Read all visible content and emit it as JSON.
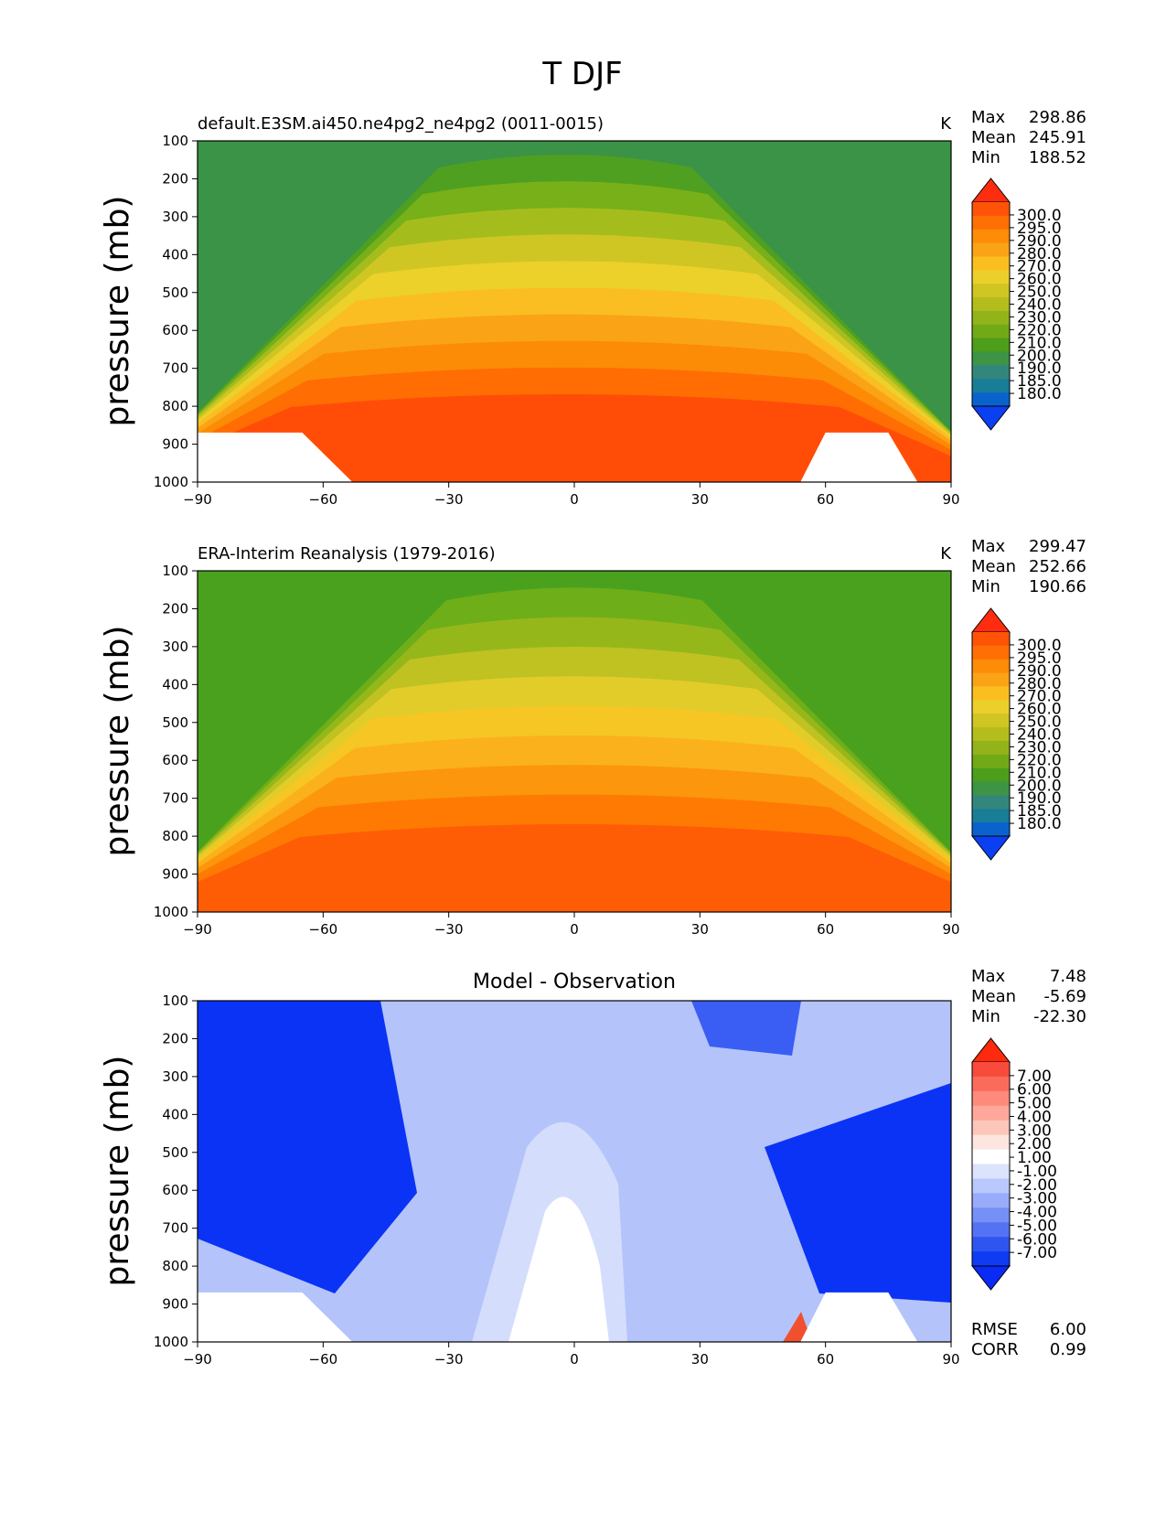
{
  "figure": {
    "title": "T DJF"
  },
  "chart_data": [
    {
      "type": "contour",
      "title": "default.E3SM.ai450.ne4pg2_ne4pg2 (0011-0015)",
      "units": "K",
      "ylabel": "pressure (mb)",
      "xlim": [
        -90,
        90
      ],
      "ylim": [
        1000,
        100
      ],
      "xticks": [
        "−90",
        "−60",
        "−30",
        "0",
        "30",
        "60",
        "90"
      ],
      "yticks": [
        "100",
        "200",
        "300",
        "400",
        "500",
        "600",
        "700",
        "800",
        "900",
        "1000"
      ],
      "stats": [
        {
          "label": "Max",
          "value": "298.86"
        },
        {
          "label": "Mean",
          "value": "245.91"
        },
        {
          "label": "Min",
          "value": "188.52"
        }
      ],
      "colorbar": {
        "levels": [
          "300.0",
          "295.0",
          "290.0",
          "280.0",
          "270.0",
          "260.0",
          "250.0",
          "240.0",
          "230.0",
          "220.0",
          "210.0",
          "200.0",
          "190.0",
          "185.0",
          "180.0"
        ],
        "colors": [
          "#ff2d0f",
          "#ff5408",
          "#ff6f05",
          "#fd8c07",
          "#fba317",
          "#fbbe21",
          "#ebcf2b",
          "#cfc523",
          "#b3be1d",
          "#92b41a",
          "#72a917",
          "#4c9e1b",
          "#3d9445",
          "#33867c",
          "#187d97",
          "#0a62cd",
          "#0b3ff2"
        ]
      },
      "contour_fill": [
        "#3a9346",
        "#4fa020",
        "#77b019",
        "#a5bd1c",
        "#cfc624",
        "#ecd12b",
        "#fbbe22",
        "#fba316",
        "#fc8b06",
        "#ff6d03",
        "#ff4d08"
      ],
      "grid": false
    },
    {
      "type": "contour",
      "title": "ERA-Interim Reanalysis (1979-2016)",
      "units": "K",
      "ylabel": "pressure (mb)",
      "xlim": [
        -90,
        90
      ],
      "ylim": [
        1000,
        100
      ],
      "xticks": [
        "−90",
        "−60",
        "−30",
        "0",
        "30",
        "60",
        "90"
      ],
      "yticks": [
        "100",
        "200",
        "300",
        "400",
        "500",
        "600",
        "700",
        "800",
        "900",
        "1000"
      ],
      "stats": [
        {
          "label": "Max",
          "value": "299.47"
        },
        {
          "label": "Mean",
          "value": "252.66"
        },
        {
          "label": "Min",
          "value": "190.66"
        }
      ],
      "colorbar": {
        "levels": [
          "300.0",
          "295.0",
          "290.0",
          "280.0",
          "270.0",
          "260.0",
          "250.0",
          "240.0",
          "230.0",
          "220.0",
          "210.0",
          "200.0",
          "190.0",
          "185.0",
          "180.0"
        ],
        "colors": [
          "#ff2d0f",
          "#ff5408",
          "#ff6f05",
          "#fd8c07",
          "#fba317",
          "#fbbe21",
          "#ebcf2b",
          "#cfc523",
          "#b3be1d",
          "#92b41a",
          "#72a917",
          "#4c9e1b",
          "#3d9445",
          "#33867c",
          "#187d97",
          "#0a62cd",
          "#0b3ff2"
        ]
      },
      "contour_fill": [
        "#4aa11e",
        "#6eae19",
        "#96b71a",
        "#bfc221",
        "#e2cc29",
        "#f6c624",
        "#fbb11c",
        "#fc960c",
        "#ff7a03",
        "#ff5d05"
      ],
      "grid": false
    },
    {
      "type": "contour",
      "title": "Model - Observation",
      "units": "",
      "ylabel": "pressure (mb)",
      "xlim": [
        -90,
        90
      ],
      "ylim": [
        1000,
        100
      ],
      "xticks": [
        "−90",
        "−60",
        "−30",
        "0",
        "30",
        "60",
        "90"
      ],
      "yticks": [
        "100",
        "200",
        "300",
        "400",
        "500",
        "600",
        "700",
        "800",
        "900",
        "1000"
      ],
      "stats": [
        {
          "label": "Max",
          "value": "7.48"
        },
        {
          "label": "Mean",
          "value": "-5.69"
        },
        {
          "label": "Min",
          "value": "-22.30"
        }
      ],
      "extra_stats": [
        {
          "label": "RMSE",
          "value": "6.00"
        },
        {
          "label": "CORR",
          "value": "0.99"
        }
      ],
      "colorbar": {
        "levels": [
          "7.00",
          "6.00",
          "5.00",
          "4.00",
          "3.00",
          "2.00",
          "1.00",
          "-1.00",
          "-2.00",
          "-3.00",
          "-4.00",
          "-5.00",
          "-6.00",
          "-7.00"
        ],
        "colors": [
          "#ff2a0d",
          "#f84b3b",
          "#fb6b5b",
          "#fd8a7b",
          "#fda89b",
          "#fdc6bb",
          "#fde6e0",
          "#ffffff",
          "#dce3fd",
          "#bac9fd",
          "#98acfa",
          "#7590f6",
          "#5473f3",
          "#2f55f1",
          "#0f3bf2",
          "#0a2af5"
        ]
      },
      "contour_fill": [
        "#0a33f6",
        "#3a5ef3",
        "#6b86f4",
        "#93a7f7",
        "#b4c3fa",
        "#d4ddfc",
        "#ffffff",
        "#fbd0c6",
        "#f9978a",
        "#f0502f"
      ],
      "grid": false
    }
  ]
}
